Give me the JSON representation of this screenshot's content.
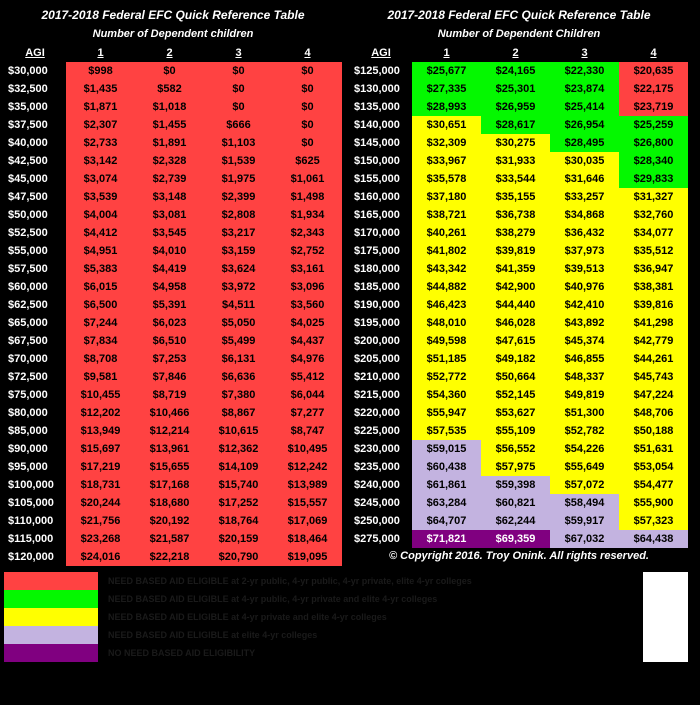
{
  "title": "2017-2018 Federal EFC Quick Reference Table",
  "subtitle": "Number of Dependent children",
  "subtitle2": "Number of Dependent Children",
  "agi_label": "AGI",
  "cols": [
    "1",
    "2",
    "3",
    "4"
  ],
  "copyright": "© Copyright 2016. Troy Onink. All rights reserved.",
  "colors": {
    "red": "#ff4242",
    "green": "#04f800",
    "yellow": "#ffff00",
    "lav": "#c3b3e0",
    "purple": "#800080",
    "bg": "#000000",
    "text": "#ffffff"
  },
  "left": {
    "rows": [
      {
        "agi": "$30,000",
        "v": [
          "$998",
          "$0",
          "$0",
          "$0"
        ],
        "c": [
          "red",
          "red",
          "red",
          "red"
        ]
      },
      {
        "agi": "$32,500",
        "v": [
          "$1,435",
          "$582",
          "$0",
          "$0"
        ],
        "c": [
          "red",
          "red",
          "red",
          "red"
        ]
      },
      {
        "agi": "$35,000",
        "v": [
          "$1,871",
          "$1,018",
          "$0",
          "$0"
        ],
        "c": [
          "red",
          "red",
          "red",
          "red"
        ]
      },
      {
        "agi": "$37,500",
        "v": [
          "$2,307",
          "$1,455",
          "$666",
          "$0"
        ],
        "c": [
          "red",
          "red",
          "red",
          "red"
        ]
      },
      {
        "agi": "$40,000",
        "v": [
          "$2,733",
          "$1,891",
          "$1,103",
          "$0"
        ],
        "c": [
          "red",
          "red",
          "red",
          "red"
        ]
      },
      {
        "agi": "$42,500",
        "v": [
          "$3,142",
          "$2,328",
          "$1,539",
          "$625"
        ],
        "c": [
          "red",
          "red",
          "red",
          "red"
        ]
      },
      {
        "agi": "$45,000",
        "v": [
          "$3,074",
          "$2,739",
          "$1,975",
          "$1,061"
        ],
        "c": [
          "red",
          "red",
          "red",
          "red"
        ]
      },
      {
        "agi": "$47,500",
        "v": [
          "$3,539",
          "$3,148",
          "$2,399",
          "$1,498"
        ],
        "c": [
          "red",
          "red",
          "red",
          "red"
        ]
      },
      {
        "agi": "$50,000",
        "v": [
          "$4,004",
          "$3,081",
          "$2,808",
          "$1,934"
        ],
        "c": [
          "red",
          "red",
          "red",
          "red"
        ]
      },
      {
        "agi": "$52,500",
        "v": [
          "$4,412",
          "$3,545",
          "$3,217",
          "$2,343"
        ],
        "c": [
          "red",
          "red",
          "red",
          "red"
        ]
      },
      {
        "agi": "$55,000",
        "v": [
          "$4,951",
          "$4,010",
          "$3,159",
          "$2,752"
        ],
        "c": [
          "red",
          "red",
          "red",
          "red"
        ]
      },
      {
        "agi": "$57,500",
        "v": [
          "$5,383",
          "$4,419",
          "$3,624",
          "$3,161"
        ],
        "c": [
          "red",
          "red",
          "red",
          "red"
        ]
      },
      {
        "agi": "$60,000",
        "v": [
          "$6,015",
          "$4,958",
          "$3,972",
          "$3,096"
        ],
        "c": [
          "red",
          "red",
          "red",
          "red"
        ]
      },
      {
        "agi": "$62,500",
        "v": [
          "$6,500",
          "$5,391",
          "$4,511",
          "$3,560"
        ],
        "c": [
          "red",
          "red",
          "red",
          "red"
        ]
      },
      {
        "agi": "$65,000",
        "v": [
          "$7,244",
          "$6,023",
          "$5,050",
          "$4,025"
        ],
        "c": [
          "red",
          "red",
          "red",
          "red"
        ]
      },
      {
        "agi": "$67,500",
        "v": [
          "$7,834",
          "$6,510",
          "$5,499",
          "$4,437"
        ],
        "c": [
          "red",
          "red",
          "red",
          "red"
        ]
      },
      {
        "agi": "$70,000",
        "v": [
          "$8,708",
          "$7,253",
          "$6,131",
          "$4,976"
        ],
        "c": [
          "red",
          "red",
          "red",
          "red"
        ]
      },
      {
        "agi": "$72,500",
        "v": [
          "$9,581",
          "$7,846",
          "$6,636",
          "$5,412"
        ],
        "c": [
          "red",
          "red",
          "red",
          "red"
        ]
      },
      {
        "agi": "$75,000",
        "v": [
          "$10,455",
          "$8,719",
          "$7,380",
          "$6,044"
        ],
        "c": [
          "red",
          "red",
          "red",
          "red"
        ]
      },
      {
        "agi": "$80,000",
        "v": [
          "$12,202",
          "$10,466",
          "$8,867",
          "$7,277"
        ],
        "c": [
          "red",
          "red",
          "red",
          "red"
        ]
      },
      {
        "agi": "$85,000",
        "v": [
          "$13,949",
          "$12,214",
          "$10,615",
          "$8,747"
        ],
        "c": [
          "red",
          "red",
          "red",
          "red"
        ]
      },
      {
        "agi": "$90,000",
        "v": [
          "$15,697",
          "$13,961",
          "$12,362",
          "$10,495"
        ],
        "c": [
          "red",
          "red",
          "red",
          "red"
        ]
      },
      {
        "agi": "$95,000",
        "v": [
          "$17,219",
          "$15,655",
          "$14,109",
          "$12,242"
        ],
        "c": [
          "red",
          "red",
          "red",
          "red"
        ]
      },
      {
        "agi": "$100,000",
        "v": [
          "$18,731",
          "$17,168",
          "$15,740",
          "$13,989"
        ],
        "c": [
          "red",
          "red",
          "red",
          "red"
        ]
      },
      {
        "agi": "$105,000",
        "v": [
          "$20,244",
          "$18,680",
          "$17,252",
          "$15,557"
        ],
        "c": [
          "red",
          "red",
          "red",
          "red"
        ]
      },
      {
        "agi": "$110,000",
        "v": [
          "$21,756",
          "$20,192",
          "$18,764",
          "$17,069"
        ],
        "c": [
          "red",
          "red",
          "red",
          "red"
        ]
      },
      {
        "agi": "$115,000",
        "v": [
          "$23,268",
          "$21,587",
          "$20,159",
          "$18,464"
        ],
        "c": [
          "red",
          "red",
          "red",
          "red"
        ]
      },
      {
        "agi": "$120,000",
        "v": [
          "$24,016",
          "$22,218",
          "$20,790",
          "$19,095"
        ],
        "c": [
          "red",
          "red",
          "red",
          "red"
        ]
      }
    ]
  },
  "right": {
    "rows": [
      {
        "agi": "$125,000",
        "v": [
          "$25,677",
          "$24,165",
          "$22,330",
          "$20,635"
        ],
        "c": [
          "green",
          "green",
          "green",
          "red"
        ]
      },
      {
        "agi": "$130,000",
        "v": [
          "$27,335",
          "$25,301",
          "$23,874",
          "$22,175"
        ],
        "c": [
          "green",
          "green",
          "green",
          "red"
        ]
      },
      {
        "agi": "$135,000",
        "v": [
          "$28,993",
          "$26,959",
          "$25,414",
          "$23,719"
        ],
        "c": [
          "green",
          "green",
          "green",
          "red"
        ]
      },
      {
        "agi": "$140,000",
        "v": [
          "$30,651",
          "$28,617",
          "$26,954",
          "$25,259"
        ],
        "c": [
          "yellow",
          "green",
          "green",
          "green"
        ]
      },
      {
        "agi": "$145,000",
        "v": [
          "$32,309",
          "$30,275",
          "$28,495",
          "$26,800"
        ],
        "c": [
          "yellow",
          "yellow",
          "green",
          "green"
        ]
      },
      {
        "agi": "$150,000",
        "v": [
          "$33,967",
          "$31,933",
          "$30,035",
          "$28,340"
        ],
        "c": [
          "yellow",
          "yellow",
          "yellow",
          "green"
        ]
      },
      {
        "agi": "$155,000",
        "v": [
          "$35,578",
          "$33,544",
          "$31,646",
          "$29,833"
        ],
        "c": [
          "yellow",
          "yellow",
          "yellow",
          "green"
        ]
      },
      {
        "agi": "$160,000",
        "v": [
          "$37,180",
          "$35,155",
          "$33,257",
          "$31,327"
        ],
        "c": [
          "yellow",
          "yellow",
          "yellow",
          "yellow"
        ]
      },
      {
        "agi": "$165,000",
        "v": [
          "$38,721",
          "$36,738",
          "$34,868",
          "$32,760"
        ],
        "c": [
          "yellow",
          "yellow",
          "yellow",
          "yellow"
        ]
      },
      {
        "agi": "$170,000",
        "v": [
          "$40,261",
          "$38,279",
          "$36,432",
          "$34,077"
        ],
        "c": [
          "yellow",
          "yellow",
          "yellow",
          "yellow"
        ]
      },
      {
        "agi": "$175,000",
        "v": [
          "$41,802",
          "$39,819",
          "$37,973",
          "$35,512"
        ],
        "c": [
          "yellow",
          "yellow",
          "yellow",
          "yellow"
        ]
      },
      {
        "agi": "$180,000",
        "v": [
          "$43,342",
          "$41,359",
          "$39,513",
          "$36,947"
        ],
        "c": [
          "yellow",
          "yellow",
          "yellow",
          "yellow"
        ]
      },
      {
        "agi": "$185,000",
        "v": [
          "$44,882",
          "$42,900",
          "$40,976",
          "$38,381"
        ],
        "c": [
          "yellow",
          "yellow",
          "yellow",
          "yellow"
        ]
      },
      {
        "agi": "$190,000",
        "v": [
          "$46,423",
          "$44,440",
          "$42,410",
          "$39,816"
        ],
        "c": [
          "yellow",
          "yellow",
          "yellow",
          "yellow"
        ]
      },
      {
        "agi": "$195,000",
        "v": [
          "$48,010",
          "$46,028",
          "$43,892",
          "$41,298"
        ],
        "c": [
          "yellow",
          "yellow",
          "yellow",
          "yellow"
        ]
      },
      {
        "agi": "$200,000",
        "v": [
          "$49,598",
          "$47,615",
          "$45,374",
          "$42,779"
        ],
        "c": [
          "yellow",
          "yellow",
          "yellow",
          "yellow"
        ]
      },
      {
        "agi": "$205,000",
        "v": [
          "$51,185",
          "$49,182",
          "$46,855",
          "$44,261"
        ],
        "c": [
          "yellow",
          "yellow",
          "yellow",
          "yellow"
        ]
      },
      {
        "agi": "$210,000",
        "v": [
          "$52,772",
          "$50,664",
          "$48,337",
          "$45,743"
        ],
        "c": [
          "yellow",
          "yellow",
          "yellow",
          "yellow"
        ]
      },
      {
        "agi": "$215,000",
        "v": [
          "$54,360",
          "$52,145",
          "$49,819",
          "$47,224"
        ],
        "c": [
          "yellow",
          "yellow",
          "yellow",
          "yellow"
        ]
      },
      {
        "agi": "$220,000",
        "v": [
          "$55,947",
          "$53,627",
          "$51,300",
          "$48,706"
        ],
        "c": [
          "yellow",
          "yellow",
          "yellow",
          "yellow"
        ]
      },
      {
        "agi": "$225,000",
        "v": [
          "$57,535",
          "$55,109",
          "$52,782",
          "$50,188"
        ],
        "c": [
          "yellow",
          "yellow",
          "yellow",
          "yellow"
        ]
      },
      {
        "agi": "$230,000",
        "v": [
          "$59,015",
          "$56,552",
          "$54,226",
          "$51,631"
        ],
        "c": [
          "lav",
          "yellow",
          "yellow",
          "yellow"
        ]
      },
      {
        "agi": "$235,000",
        "v": [
          "$60,438",
          "$57,975",
          "$55,649",
          "$53,054"
        ],
        "c": [
          "lav",
          "yellow",
          "yellow",
          "yellow"
        ]
      },
      {
        "agi": "$240,000",
        "v": [
          "$61,861",
          "$59,398",
          "$57,072",
          "$54,477"
        ],
        "c": [
          "lav",
          "lav",
          "yellow",
          "yellow"
        ]
      },
      {
        "agi": "$245,000",
        "v": [
          "$63,284",
          "$60,821",
          "$58,494",
          "$55,900"
        ],
        "c": [
          "lav",
          "lav",
          "lav",
          "yellow"
        ]
      },
      {
        "agi": "$250,000",
        "v": [
          "$64,707",
          "$62,244",
          "$59,917",
          "$57,323"
        ],
        "c": [
          "lav",
          "lav",
          "lav",
          "yellow"
        ]
      },
      {
        "agi": "$275,000",
        "v": [
          "$71,821",
          "$69,359",
          "$67,032",
          "$64,438"
        ],
        "c": [
          "purple",
          "purple",
          "lav",
          "lav"
        ]
      }
    ]
  },
  "legend": [
    {
      "color": "red",
      "text": "NEED BASED AID ELIGIBLE at 2-yr public, 4-yr public, 4-yr private, elite 4-yr colleges"
    },
    {
      "color": "green",
      "text": "NEED BASED AID ELIGIBLE at 4-yr public, 4-yr private and elite 4-yr colleges"
    },
    {
      "color": "yellow",
      "text": "NEED BASED AID ELIGIBLE at 4-yr private and elite 4-yr colleges"
    },
    {
      "color": "lav",
      "text": "NEED BASED AID ELIGIBLE at elite 4-yr colleges"
    },
    {
      "color": "purple",
      "text": "NO NEED BASED AID ELIGIBILITY"
    }
  ]
}
